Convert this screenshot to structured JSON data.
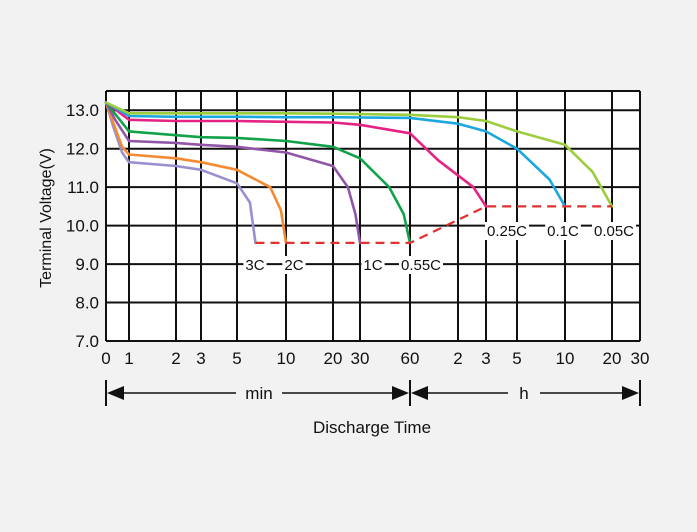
{
  "chart_data": {
    "type": "line",
    "ylabel": "Terminal Voltage(V)",
    "xlabel": "Discharge Time",
    "ylim": [
      7.0,
      13.5
    ],
    "y_ticks": [
      "7.0",
      "8.0",
      "9.0",
      "10.0",
      "11.0",
      "12.0",
      "13.0"
    ],
    "x_ticks": [
      "0",
      "1",
      "2",
      "3",
      "5",
      "10",
      "20",
      "30",
      "60",
      "2",
      "3",
      "5",
      "10",
      "20",
      "30"
    ],
    "range_labels": {
      "min": "min",
      "h": "h"
    },
    "grid": true,
    "series": [
      {
        "name": "3C",
        "color": "#9b8fd1",
        "points": [
          [
            0,
            13.2
          ],
          [
            0.3,
            12.6
          ],
          [
            0.7,
            11.9
          ],
          [
            1,
            11.65
          ],
          [
            2,
            11.55
          ],
          [
            3,
            11.45
          ],
          [
            5,
            11.1
          ],
          [
            6,
            10.6
          ],
          [
            6.5,
            9.55
          ]
        ]
      },
      {
        "name": "2C",
        "color": "#f48b33",
        "points": [
          [
            0,
            13.2
          ],
          [
            0.3,
            12.7
          ],
          [
            0.7,
            12.05
          ],
          [
            1,
            11.85
          ],
          [
            2,
            11.75
          ],
          [
            3,
            11.65
          ],
          [
            5,
            11.45
          ],
          [
            8,
            11.0
          ],
          [
            9.3,
            10.4
          ],
          [
            10,
            9.55
          ]
        ]
      },
      {
        "name": "1C",
        "color": "#9156a8",
        "points": [
          [
            0,
            13.2
          ],
          [
            0.4,
            12.75
          ],
          [
            1,
            12.2
          ],
          [
            2,
            12.15
          ],
          [
            3,
            12.1
          ],
          [
            5,
            12.05
          ],
          [
            10,
            11.9
          ],
          [
            20,
            11.55
          ],
          [
            25,
            11.0
          ],
          [
            28,
            10.3
          ],
          [
            30,
            9.55
          ]
        ]
      },
      {
        "name": "0.55C",
        "color": "#11a24a",
        "points": [
          [
            0,
            13.2
          ],
          [
            0.6,
            12.75
          ],
          [
            1,
            12.45
          ],
          [
            2,
            12.35
          ],
          [
            3,
            12.3
          ],
          [
            5,
            12.28
          ],
          [
            10,
            12.2
          ],
          [
            20,
            12.05
          ],
          [
            30,
            11.75
          ],
          [
            45,
            11.0
          ],
          [
            55,
            10.3
          ],
          [
            60,
            9.55
          ]
        ]
      },
      {
        "name": "0.25C",
        "color": "#e52384",
        "points": [
          [
            0,
            13.2
          ],
          [
            1,
            12.75
          ],
          [
            2,
            12.72
          ],
          [
            3,
            12.72
          ],
          [
            5,
            12.72
          ],
          [
            10,
            12.7
          ],
          [
            20,
            12.68
          ],
          [
            30,
            12.62
          ],
          [
            60,
            12.4
          ],
          [
            90,
            11.7
          ],
          [
            150,
            11.0
          ],
          [
            180,
            10.5
          ]
        ]
      },
      {
        "name": "0.1C",
        "color": "#1da7e0",
        "points": [
          [
            0,
            13.2
          ],
          [
            1,
            12.85
          ],
          [
            2,
            12.83
          ],
          [
            3,
            12.83
          ],
          [
            5,
            12.83
          ],
          [
            10,
            12.82
          ],
          [
            20,
            12.82
          ],
          [
            30,
            12.81
          ],
          [
            60,
            12.8
          ],
          [
            120,
            12.65
          ],
          [
            180,
            12.45
          ],
          [
            300,
            12.0
          ],
          [
            480,
            11.2
          ],
          [
            600,
            10.5
          ]
        ]
      },
      {
        "name": "0.05C",
        "color": "#9ccd3c",
        "points": [
          [
            0,
            13.2
          ],
          [
            1,
            12.92
          ],
          [
            2,
            12.92
          ],
          [
            3,
            12.92
          ],
          [
            5,
            12.92
          ],
          [
            10,
            12.92
          ],
          [
            20,
            12.91
          ],
          [
            30,
            12.9
          ],
          [
            60,
            12.88
          ],
          [
            120,
            12.82
          ],
          [
            180,
            12.72
          ],
          [
            300,
            12.45
          ],
          [
            600,
            12.1
          ],
          [
            900,
            11.4
          ],
          [
            1200,
            10.5
          ]
        ]
      }
    ],
    "endpoint_line": {
      "color": "#e03030",
      "points": [
        [
          6.5,
          9.55
        ],
        [
          60,
          9.55
        ],
        [
          180,
          10.5
        ],
        [
          1200,
          10.5
        ]
      ]
    }
  }
}
